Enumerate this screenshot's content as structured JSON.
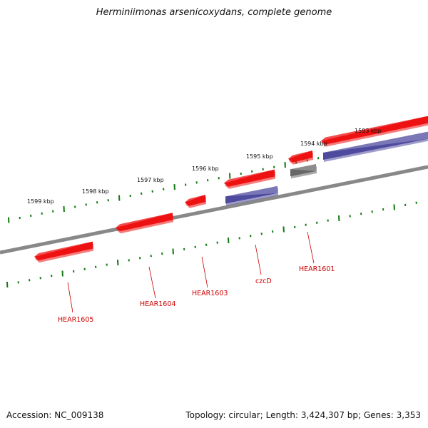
{
  "title": "Herminiimonas arsenicoxydans, complete genome",
  "accession_text": "Accession: NC_009138",
  "summary_text": "Topology: circular; Length: 3,424,307 bp; Genes: 3,353",
  "colors": {
    "backbone": "#888888",
    "forward_gene": "#ee1111",
    "reverse_gene": "#4e4a9e",
    "other_gene": "#666666",
    "ticks": "#127a12",
    "gene_label": "#cc0000"
  },
  "scale_labels": [
    "1599 kbp",
    "1598 kbp",
    "1597 kbp",
    "1596 kbp",
    "1595 kbp",
    "1594 kbp",
    "1593 kbp"
  ],
  "gene_labels": [
    "HEAR1605",
    "HEAR1604",
    "HEAR1603",
    "czcD",
    "HEAR1601"
  ]
}
